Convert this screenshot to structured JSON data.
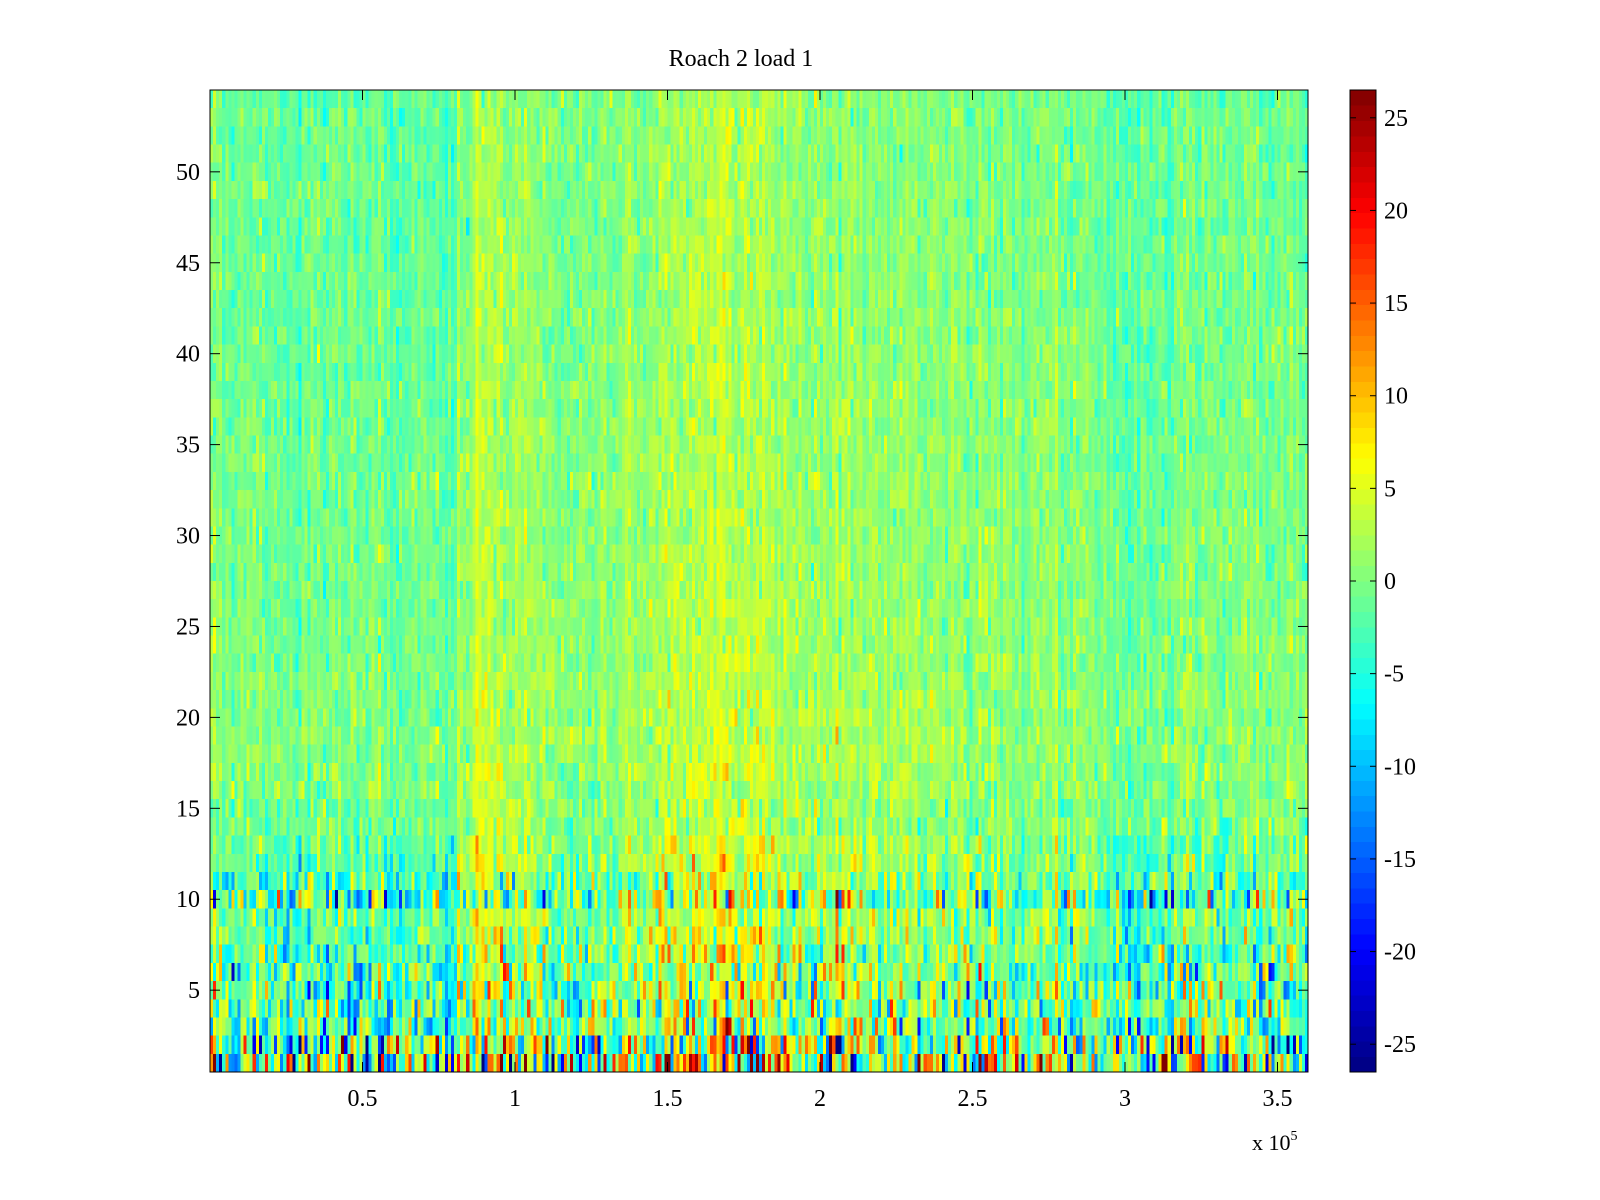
{
  "chart_data": {
    "type": "heatmap",
    "title": "Roach 2 load 1",
    "xlabel": "",
    "ylabel": "",
    "x_multiplier_label": {
      "base": "x 10",
      "exponent": "5"
    },
    "xlim": [
      0,
      3.6
    ],
    "ylim": [
      0.5,
      54.5
    ],
    "x_ticks": [
      {
        "value": 0.5,
        "label": "0.5"
      },
      {
        "value": 1,
        "label": "1"
      },
      {
        "value": 1.5,
        "label": "1.5"
      },
      {
        "value": 2,
        "label": "2"
      },
      {
        "value": 2.5,
        "label": "2.5"
      },
      {
        "value": 3,
        "label": "3"
      },
      {
        "value": 3.5,
        "label": "3.5"
      }
    ],
    "y_ticks": [
      {
        "value": 5,
        "label": "5"
      },
      {
        "value": 10,
        "label": "10"
      },
      {
        "value": 15,
        "label": "15"
      },
      {
        "value": 20,
        "label": "20"
      },
      {
        "value": 25,
        "label": "25"
      },
      {
        "value": 30,
        "label": "30"
      },
      {
        "value": 35,
        "label": "35"
      },
      {
        "value": 40,
        "label": "40"
      },
      {
        "value": 45,
        "label": "45"
      },
      {
        "value": 50,
        "label": "50"
      }
    ],
    "rows": 54,
    "columns": 360,
    "colormap": "jet",
    "colorbar": {
      "range": [
        -26.5,
        26.5
      ],
      "ticks": [
        {
          "value": 25,
          "label": "25"
        },
        {
          "value": 20,
          "label": "20"
        },
        {
          "value": 15,
          "label": "15"
        },
        {
          "value": 10,
          "label": "10"
        },
        {
          "value": 5,
          "label": "5"
        },
        {
          "value": 0,
          "label": "0"
        },
        {
          "value": -5,
          "label": "-5"
        },
        {
          "value": -10,
          "label": "-10"
        },
        {
          "value": -15,
          "label": "-15"
        },
        {
          "value": -20,
          "label": "-20"
        },
        {
          "value": -25,
          "label": "-25"
        }
      ]
    },
    "column_trend": [
      {
        "x": 0.0,
        "offset": -0.5
      },
      {
        "x": 0.3,
        "offset": -1.5
      },
      {
        "x": 0.5,
        "offset": -0.5
      },
      {
        "x": 0.8,
        "offset": -2.0
      },
      {
        "x": 0.87,
        "offset": 4.0
      },
      {
        "x": 1.0,
        "offset": 2.0
      },
      {
        "x": 1.2,
        "offset": 0.0
      },
      {
        "x": 1.4,
        "offset": 1.0
      },
      {
        "x": 1.7,
        "offset": 4.0
      },
      {
        "x": 1.9,
        "offset": 1.5
      },
      {
        "x": 2.2,
        "offset": 2.0
      },
      {
        "x": 2.5,
        "offset": 0.0
      },
      {
        "x": 2.8,
        "offset": 0.5
      },
      {
        "x": 3.0,
        "offset": -2.0
      },
      {
        "x": 3.3,
        "offset": 0.0
      },
      {
        "x": 3.6,
        "offset": -0.5
      }
    ],
    "row_profile": [
      {
        "row": 1,
        "mean": 0,
        "spread": 22
      },
      {
        "row": 2,
        "mean": 0,
        "spread": 20
      },
      {
        "row": 3,
        "mean": -1,
        "spread": 13
      },
      {
        "row": 4,
        "mean": -1,
        "spread": 12
      },
      {
        "row": 5,
        "mean": -1,
        "spread": 11
      },
      {
        "row": 6,
        "mean": -1,
        "spread": 10
      },
      {
        "row": 7,
        "mean": -1,
        "spread": 9
      },
      {
        "row": 8,
        "mean": 0,
        "spread": 7
      },
      {
        "row": 9,
        "mean": 0,
        "spread": 6
      },
      {
        "row": 10,
        "mean": -2,
        "spread": 13
      },
      {
        "row": 11,
        "mean": -1,
        "spread": 8
      },
      {
        "row": 12,
        "mean": 0,
        "spread": 5
      },
      {
        "row": 13,
        "mean": 0,
        "spread": 4.5
      },
      {
        "row": 18,
        "mean": 1,
        "spread": 3.5
      },
      {
        "row": 25,
        "mean": 0.5,
        "spread": 3
      },
      {
        "row": 38,
        "mean": 0,
        "spread": 3
      },
      {
        "row": 54,
        "mean": -0.5,
        "spread": 3
      }
    ]
  }
}
